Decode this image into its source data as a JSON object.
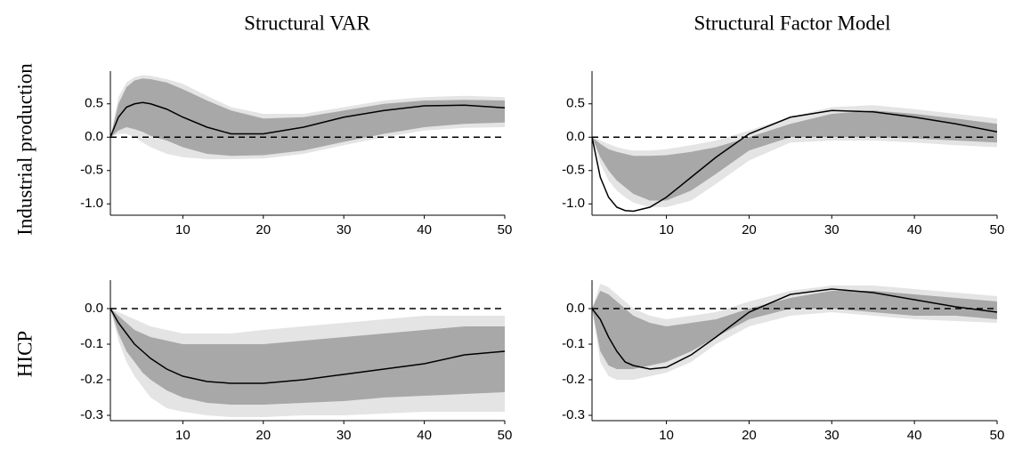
{
  "column_titles": [
    "Structural VAR",
    "Structural Factor Model"
  ],
  "row_labels": [
    "Industrial production",
    "HICP"
  ],
  "chart_data": [
    {
      "type": "line",
      "x": [
        1,
        2,
        3,
        4,
        5,
        6,
        8,
        10,
        13,
        16,
        20,
        25,
        30,
        35,
        40,
        45,
        50
      ],
      "xlim": [
        1,
        50
      ],
      "xticks": [
        10,
        20,
        30,
        40,
        50
      ],
      "ylim": [
        -1.17,
        0.99
      ],
      "yticks": [
        {
          "value": -1,
          "label": "-1.0"
        },
        -0.5,
        {
          "value": 0,
          "label": "0.0"
        },
        0.5
      ],
      "hline": 0,
      "bands": [
        {
          "color": "#e4e4e4",
          "upper": [
            0,
            0.6,
            0.82,
            0.9,
            0.93,
            0.92,
            0.87,
            0.8,
            0.62,
            0.45,
            0.35,
            0.35,
            0.45,
            0.55,
            0.6,
            0.62,
            0.6
          ],
          "lower": [
            0,
            0.05,
            0.05,
            0,
            -0.08,
            -0.15,
            -0.25,
            -0.3,
            -0.33,
            -0.33,
            -0.32,
            -0.25,
            -0.12,
            0,
            0.1,
            0.14,
            0.15
          ]
        },
        {
          "color": "#a8a8a8",
          "upper": [
            0,
            0.5,
            0.75,
            0.85,
            0.88,
            0.87,
            0.82,
            0.72,
            0.55,
            0.4,
            0.28,
            0.3,
            0.4,
            0.5,
            0.55,
            0.56,
            0.55
          ],
          "lower": [
            0,
            0.1,
            0.15,
            0.12,
            0.08,
            0.02,
            -0.05,
            -0.15,
            -0.25,
            -0.28,
            -0.27,
            -0.2,
            -0.07,
            0.05,
            0.15,
            0.2,
            0.22
          ]
        }
      ],
      "series": [
        {
          "color": "#000000",
          "values": [
            0,
            0.3,
            0.45,
            0.5,
            0.52,
            0.5,
            0.42,
            0.3,
            0.15,
            0.05,
            0.05,
            0.15,
            0.3,
            0.4,
            0.47,
            0.48,
            0.44
          ]
        }
      ]
    },
    {
      "type": "line",
      "x": [
        1,
        2,
        3,
        4,
        5,
        6,
        8,
        10,
        13,
        16,
        20,
        25,
        30,
        35,
        40,
        45,
        50
      ],
      "xlim": [
        1,
        50
      ],
      "xticks": [
        10,
        20,
        30,
        40,
        50
      ],
      "ylim": [
        -1.17,
        0.99
      ],
      "yticks": [
        {
          "value": -1,
          "label": "-1.0"
        },
        -0.5,
        {
          "value": 0,
          "label": "0.0"
        },
        0.5
      ],
      "hline": 0,
      "bands": [
        {
          "color": "#e4e4e4",
          "upper": [
            0,
            -0.05,
            -0.1,
            -0.15,
            -0.18,
            -0.2,
            -0.2,
            -0.18,
            -0.12,
            -0.05,
            0.1,
            0.3,
            0.45,
            0.48,
            0.42,
            0.35,
            0.28
          ],
          "lower": [
            0,
            -0.4,
            -0.65,
            -0.8,
            -0.9,
            -0.98,
            -1.05,
            -1.05,
            -0.95,
            -0.7,
            -0.35,
            -0.08,
            -0.05,
            -0.05,
            -0.08,
            -0.12,
            -0.15
          ]
        },
        {
          "color": "#a8a8a8",
          "upper": [
            0,
            -0.1,
            -0.18,
            -0.22,
            -0.25,
            -0.28,
            -0.28,
            -0.27,
            -0.22,
            -0.15,
            0,
            0.2,
            0.35,
            0.4,
            0.35,
            0.28,
            0.2
          ],
          "lower": [
            0,
            -0.3,
            -0.5,
            -0.65,
            -0.75,
            -0.85,
            -0.95,
            -0.95,
            -0.8,
            -0.55,
            -0.2,
            0,
            0,
            0,
            -0.02,
            -0.05,
            -0.08
          ]
        }
      ],
      "series": [
        {
          "color": "#000000",
          "values": [
            0,
            -0.6,
            -0.9,
            -1.05,
            -1.1,
            -1.11,
            -1.05,
            -0.9,
            -0.6,
            -0.3,
            0.05,
            0.3,
            0.4,
            0.38,
            0.3,
            0.2,
            0.08
          ]
        }
      ]
    },
    {
      "type": "line",
      "x": [
        1,
        2,
        3,
        4,
        5,
        6,
        8,
        10,
        13,
        16,
        20,
        25,
        30,
        35,
        40,
        45,
        50
      ],
      "xlim": [
        1,
        50
      ],
      "xticks": [
        10,
        20,
        30,
        40,
        50
      ],
      "ylim": [
        -0.315,
        0.08
      ],
      "yticks": [
        -0.3,
        -0.2,
        -0.1,
        {
          "value": 0,
          "label": "0.0"
        }
      ],
      "hline": 0,
      "bands": [
        {
          "color": "#e4e4e4",
          "upper": [
            0,
            -0.01,
            -0.02,
            -0.03,
            -0.04,
            -0.05,
            -0.06,
            -0.07,
            -0.07,
            -0.07,
            -0.06,
            -0.05,
            -0.04,
            -0.03,
            -0.02,
            -0.02,
            -0.02
          ],
          "lower": [
            0,
            -0.09,
            -0.15,
            -0.19,
            -0.22,
            -0.25,
            -0.28,
            -0.29,
            -0.3,
            -0.305,
            -0.305,
            -0.3,
            -0.3,
            -0.295,
            -0.29,
            -0.29,
            -0.29
          ]
        },
        {
          "color": "#a8a8a8",
          "upper": [
            0,
            -0.02,
            -0.04,
            -0.06,
            -0.07,
            -0.08,
            -0.09,
            -0.1,
            -0.1,
            -0.1,
            -0.1,
            -0.09,
            -0.08,
            -0.07,
            -0.06,
            -0.05,
            -0.05
          ],
          "lower": [
            0,
            -0.07,
            -0.12,
            -0.15,
            -0.18,
            -0.2,
            -0.23,
            -0.25,
            -0.265,
            -0.27,
            -0.27,
            -0.265,
            -0.26,
            -0.25,
            -0.245,
            -0.24,
            -0.235
          ]
        }
      ],
      "series": [
        {
          "color": "#000000",
          "values": [
            0,
            -0.04,
            -0.07,
            -0.1,
            -0.12,
            -0.14,
            -0.17,
            -0.19,
            -0.205,
            -0.21,
            -0.21,
            -0.2,
            -0.185,
            -0.17,
            -0.155,
            -0.13,
            -0.12
          ]
        }
      ]
    },
    {
      "type": "line",
      "x": [
        1,
        2,
        3,
        4,
        5,
        6,
        8,
        10,
        13,
        16,
        20,
        25,
        30,
        35,
        40,
        45,
        50
      ],
      "xlim": [
        1,
        50
      ],
      "xticks": [
        10,
        20,
        30,
        40,
        50
      ],
      "ylim": [
        -0.315,
        0.08
      ],
      "yticks": [
        -0.3,
        -0.2,
        -0.1,
        {
          "value": 0,
          "label": "0.0"
        }
      ],
      "hline": 0,
      "bands": [
        {
          "color": "#e4e4e4",
          "upper": [
            0,
            0.07,
            0.06,
            0.04,
            0.02,
            0,
            -0.02,
            -0.03,
            -0.02,
            -0.01,
            0.02,
            0.05,
            0.065,
            0.065,
            0.055,
            0.045,
            0.035
          ],
          "lower": [
            0,
            -0.15,
            -0.19,
            -0.2,
            -0.2,
            -0.2,
            -0.19,
            -0.18,
            -0.15,
            -0.1,
            -0.05,
            -0.02,
            -0.01,
            -0.02,
            -0.03,
            -0.035,
            -0.04
          ]
        },
        {
          "color": "#a8a8a8",
          "upper": [
            0,
            0.05,
            0.04,
            0.02,
            0,
            -0.02,
            -0.04,
            -0.05,
            -0.04,
            -0.03,
            0,
            0.03,
            0.05,
            0.05,
            0.04,
            0.03,
            0.02
          ],
          "lower": [
            0,
            -0.12,
            -0.16,
            -0.17,
            -0.17,
            -0.17,
            -0.16,
            -0.15,
            -0.12,
            -0.08,
            -0.03,
            0,
            0,
            -0.01,
            -0.02,
            -0.02,
            -0.03
          ]
        }
      ],
      "series": [
        {
          "color": "#000000",
          "values": [
            0,
            -0.03,
            -0.08,
            -0.12,
            -0.15,
            -0.16,
            -0.17,
            -0.165,
            -0.13,
            -0.08,
            -0.01,
            0.04,
            0.055,
            0.045,
            0.025,
            0.005,
            -0.01
          ]
        }
      ]
    }
  ]
}
